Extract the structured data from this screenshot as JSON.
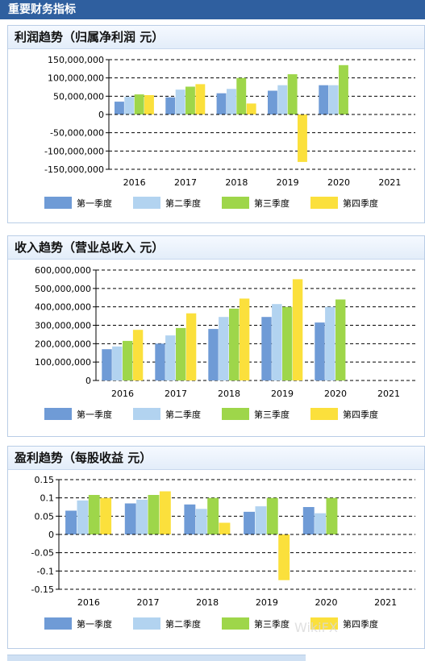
{
  "header": {
    "title": "重要财务指标"
  },
  "watermark": {
    "text": "WikiFX"
  },
  "legend": [
    {
      "label": "第一季度",
      "color": "#6f9bd6"
    },
    {
      "label": "第二季度",
      "color": "#b2d3f0"
    },
    {
      "label": "第三季度",
      "color": "#9ed64a"
    },
    {
      "label": "第四季度",
      "color": "#fbe03c"
    }
  ],
  "chart_data": [
    {
      "type": "bar",
      "title": "利润趋势（归属净利润 元）",
      "categories": [
        "2016",
        "2017",
        "2018",
        "2019",
        "2020",
        "2021"
      ],
      "yticks": [
        "150,000,000",
        "100,000,000",
        "50,000,000",
        "0",
        "-50,000,000",
        "-100,000,000",
        "-150,000,000"
      ],
      "ylim": [
        -150000000,
        150000000
      ],
      "series": [
        {
          "name": "第一季度",
          "values": [
            35000000,
            47000000,
            58000000,
            65000000,
            80000000,
            null
          ]
        },
        {
          "name": "第二季度",
          "values": [
            48000000,
            68000000,
            70000000,
            80000000,
            80000000,
            null
          ]
        },
        {
          "name": "第三季度",
          "values": [
            55000000,
            76000000,
            100000000,
            110000000,
            135000000,
            null
          ]
        },
        {
          "name": "第四季度",
          "values": [
            53000000,
            83000000,
            30000000,
            -130000000,
            null,
            null
          ]
        }
      ],
      "grid": true,
      "legend_position": "bottom"
    },
    {
      "type": "bar",
      "title": "收入趋势（营业总收入 元）",
      "categories": [
        "2016",
        "2017",
        "2018",
        "2019",
        "2020",
        "2021"
      ],
      "yticks": [
        "600,000,000",
        "500,000,000",
        "400,000,000",
        "300,000,000",
        "200,000,000",
        "100,000,000",
        "0"
      ],
      "ylim": [
        0,
        600000000
      ],
      "series": [
        {
          "name": "第一季度",
          "values": [
            170000000,
            200000000,
            280000000,
            345000000,
            315000000,
            null
          ]
        },
        {
          "name": "第二季度",
          "values": [
            185000000,
            245000000,
            345000000,
            415000000,
            400000000,
            null
          ]
        },
        {
          "name": "第三季度",
          "values": [
            215000000,
            285000000,
            390000000,
            400000000,
            440000000,
            null
          ]
        },
        {
          "name": "第四季度",
          "values": [
            275000000,
            365000000,
            445000000,
            550000000,
            null,
            null
          ]
        }
      ],
      "grid": true,
      "legend_position": "bottom"
    },
    {
      "type": "bar",
      "title": "盈利趋势（每股收益 元）",
      "categories": [
        "2016",
        "2017",
        "2018",
        "2019",
        "2020",
        "2021"
      ],
      "yticks": [
        "0.15",
        "0.1",
        "0.05",
        "0",
        "-0.05",
        "-0.1",
        "-0.15"
      ],
      "ylim": [
        -0.15,
        0.15
      ],
      "series": [
        {
          "name": "第一季度",
          "values": [
            0.065,
            0.085,
            0.082,
            0.062,
            0.075,
            null
          ]
        },
        {
          "name": "第二季度",
          "values": [
            0.093,
            0.095,
            0.07,
            0.077,
            0.058,
            null
          ]
        },
        {
          "name": "第三季度",
          "values": [
            0.108,
            0.108,
            0.1,
            0.1,
            0.1,
            null
          ]
        },
        {
          "name": "第四季度",
          "values": [
            0.1,
            0.118,
            0.032,
            -0.125,
            null,
            null
          ]
        }
      ],
      "grid": true,
      "legend_position": "bottom"
    }
  ]
}
